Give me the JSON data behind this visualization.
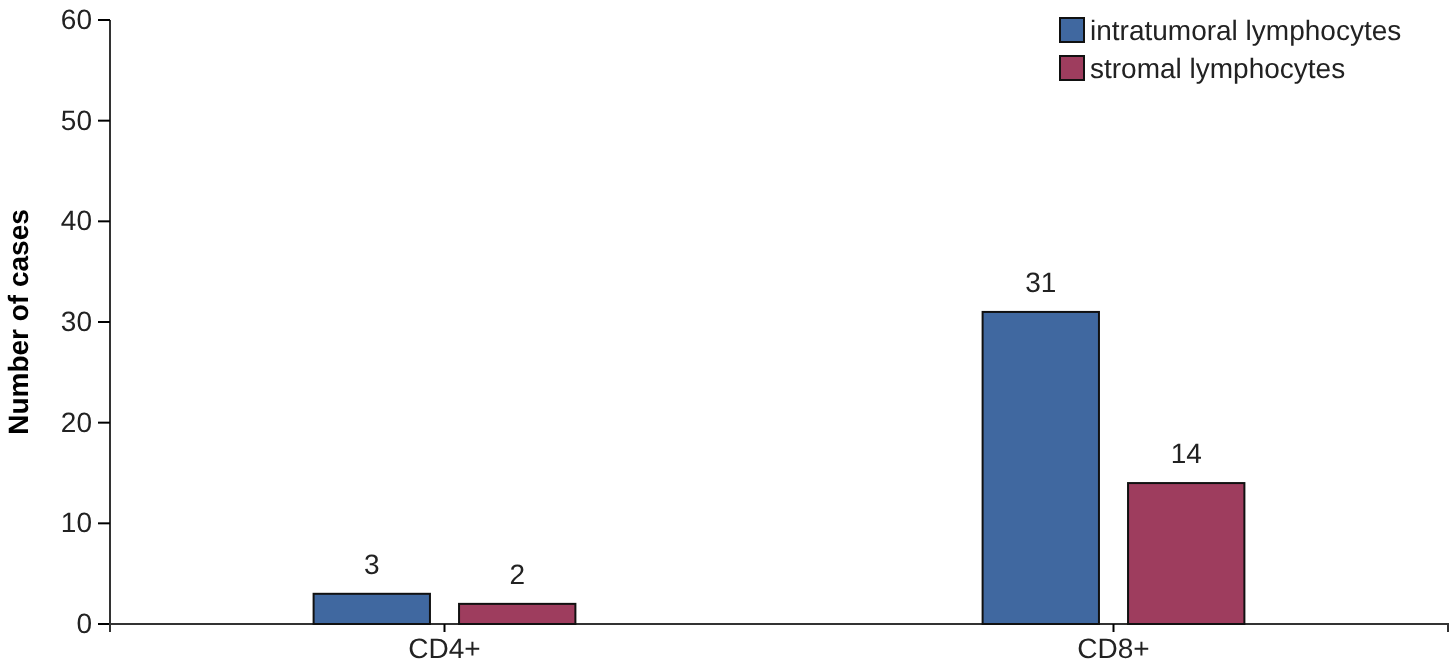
{
  "chart_data": {
    "type": "bar",
    "ylabel": "Number of cases",
    "categories": [
      "CD4+",
      "CD8+"
    ],
    "series": [
      {
        "name": "intratumoral lymphocytes",
        "color": "#4068a0",
        "values": [
          3,
          31
        ]
      },
      {
        "name": "stromal lymphocytes",
        "color": "#9e3d5e",
        "values": [
          2,
          14
        ]
      }
    ],
    "ylim": [
      0,
      60
    ],
    "yticks": [
      0,
      10,
      20,
      30,
      40,
      50,
      60
    ],
    "data_labels": true,
    "legend": "top right",
    "grid": false
  }
}
